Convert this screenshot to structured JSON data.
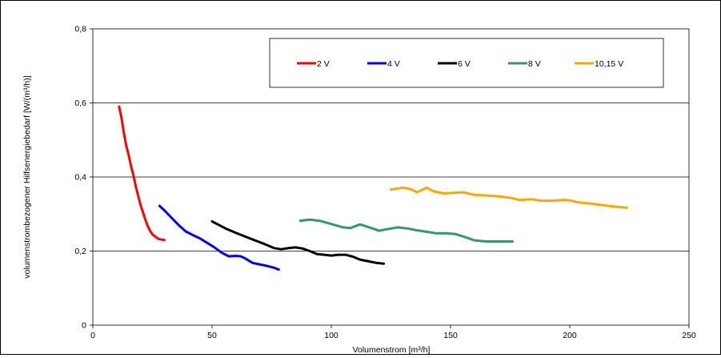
{
  "chart_data": {
    "type": "line",
    "title": "",
    "xlabel": "Volumenstrom [m³/h]",
    "ylabel": "volumenstrombezogener Hilfsenergiebedarf [W/(m³/h)]",
    "xlim": [
      0,
      250
    ],
    "ylim": [
      0,
      0.8
    ],
    "x_ticks": [
      "0",
      "50",
      "100",
      "150",
      "200",
      "250"
    ],
    "y_ticks": [
      "0",
      "0,2",
      "0,4",
      "0,6",
      "0,8"
    ],
    "grid": "horizontal",
    "legend_position": "top-right",
    "series": [
      {
        "name": "2 V",
        "color": "#ff0000",
        "points": [
          [
            11,
            0.59
          ],
          [
            12,
            0.56
          ],
          [
            13,
            0.52
          ],
          [
            14,
            0.485
          ],
          [
            15,
            0.46
          ],
          [
            16,
            0.43
          ],
          [
            17,
            0.405
          ],
          [
            18,
            0.375
          ],
          [
            19,
            0.35
          ],
          [
            20,
            0.325
          ],
          [
            21,
            0.305
          ],
          [
            22,
            0.285
          ],
          [
            23,
            0.268
          ],
          [
            24,
            0.255
          ],
          [
            25,
            0.245
          ],
          [
            26,
            0.24
          ],
          [
            27,
            0.235
          ],
          [
            28,
            0.232
          ],
          [
            30,
            0.23
          ]
        ]
      },
      {
        "name": "4 V",
        "color": "#0000ff",
        "points": [
          [
            28,
            0.322
          ],
          [
            30,
            0.31
          ],
          [
            33,
            0.29
          ],
          [
            36,
            0.27
          ],
          [
            39,
            0.253
          ],
          [
            42,
            0.243
          ],
          [
            45,
            0.234
          ],
          [
            48,
            0.222
          ],
          [
            51,
            0.21
          ],
          [
            54,
            0.196
          ],
          [
            57,
            0.186
          ],
          [
            60,
            0.187
          ],
          [
            62,
            0.186
          ],
          [
            64,
            0.18
          ],
          [
            67,
            0.168
          ],
          [
            70,
            0.164
          ],
          [
            73,
            0.16
          ],
          [
            76,
            0.155
          ],
          [
            78,
            0.15
          ]
        ]
      },
      {
        "name": "6 V",
        "color": "#000000",
        "points": [
          [
            50,
            0.28
          ],
          [
            53,
            0.27
          ],
          [
            56,
            0.26
          ],
          [
            60,
            0.249
          ],
          [
            64,
            0.239
          ],
          [
            68,
            0.229
          ],
          [
            72,
            0.219
          ],
          [
            76,
            0.208
          ],
          [
            79,
            0.205
          ],
          [
            82,
            0.208
          ],
          [
            85,
            0.21
          ],
          [
            88,
            0.207
          ],
          [
            91,
            0.2
          ],
          [
            94,
            0.192
          ],
          [
            97,
            0.19
          ],
          [
            100,
            0.188
          ],
          [
            103,
            0.19
          ],
          [
            106,
            0.19
          ],
          [
            109,
            0.185
          ],
          [
            112,
            0.177
          ],
          [
            116,
            0.172
          ],
          [
            119,
            0.168
          ],
          [
            122,
            0.166
          ]
        ]
      },
      {
        "name": "8 V",
        "color": "#339966",
        "points": [
          [
            87,
            0.282
          ],
          [
            91,
            0.285
          ],
          [
            95,
            0.282
          ],
          [
            100,
            0.273
          ],
          [
            105,
            0.264
          ],
          [
            108,
            0.262
          ],
          [
            112,
            0.272
          ],
          [
            116,
            0.264
          ],
          [
            120,
            0.255
          ],
          [
            124,
            0.26
          ],
          [
            128,
            0.264
          ],
          [
            132,
            0.261
          ],
          [
            136,
            0.256
          ],
          [
            140,
            0.252
          ],
          [
            144,
            0.248
          ],
          [
            148,
            0.248
          ],
          [
            152,
            0.246
          ],
          [
            156,
            0.238
          ],
          [
            160,
            0.229
          ],
          [
            165,
            0.226
          ],
          [
            170,
            0.226
          ],
          [
            176,
            0.226
          ]
        ]
      },
      {
        "name": "10,15 V",
        "color": "#ffa500",
        "points": [
          [
            125,
            0.366
          ],
          [
            130,
            0.371
          ],
          [
            133,
            0.368
          ],
          [
            136,
            0.359
          ],
          [
            140,
            0.371
          ],
          [
            143,
            0.361
          ],
          [
            147,
            0.356
          ],
          [
            151,
            0.357
          ],
          [
            155,
            0.359
          ],
          [
            160,
            0.352
          ],
          [
            165,
            0.35
          ],
          [
            170,
            0.348
          ],
          [
            175,
            0.344
          ],
          [
            179,
            0.338
          ],
          [
            184,
            0.34
          ],
          [
            188,
            0.336
          ],
          [
            193,
            0.336
          ],
          [
            197,
            0.338
          ],
          [
            200,
            0.337
          ],
          [
            204,
            0.331
          ],
          [
            209,
            0.328
          ],
          [
            214,
            0.324
          ],
          [
            219,
            0.32
          ],
          [
            224,
            0.317
          ]
        ]
      }
    ]
  }
}
